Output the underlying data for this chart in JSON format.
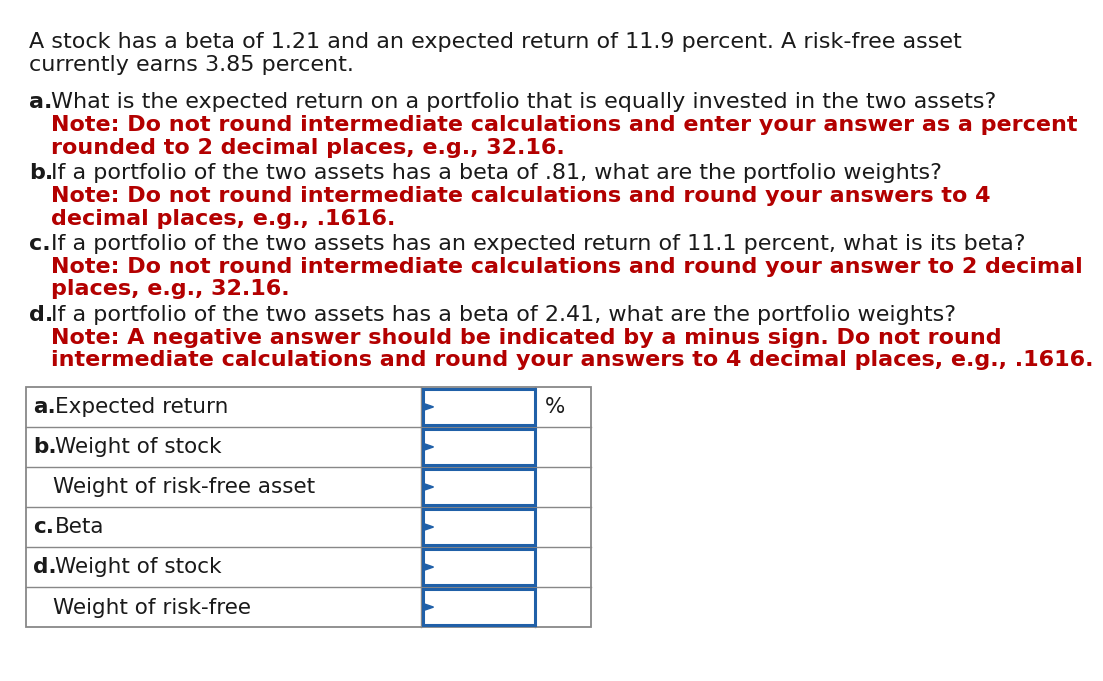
{
  "background_color": "#ffffff",
  "intro_line1": "A stock has a beta of 1.21 and an expected return of 11.9 percent. A risk-free asset",
  "intro_line2": "currently earns 3.85 percent.",
  "questions": [
    {
      "label": "a.",
      "black_text": "What is the expected return on a portfolio that is equally invested in the two assets?",
      "red_lines": [
        "Note: Do not round intermediate calculations and enter your answer as a percent",
        "rounded to 2 decimal places, e.g., 32.16."
      ]
    },
    {
      "label": "b.",
      "black_text": "If a portfolio of the two assets has a beta of .81, what are the portfolio weights?",
      "red_lines": [
        "Note: Do not round intermediate calculations and round your answers to 4",
        "decimal places, e.g., .1616."
      ]
    },
    {
      "label": "c.",
      "black_text": "If a portfolio of the two assets has an expected return of 11.1 percent, what is its beta?",
      "red_lines": [
        "Note: Do not round intermediate calculations and round your answer to 2 decimal",
        "places, e.g., 32.16."
      ]
    },
    {
      "label": "d.",
      "black_text": "If a portfolio of the two assets has a beta of 2.41, what are the portfolio weights?",
      "red_lines": [
        "Note: A negative answer should be indicated by a minus sign. Do not round",
        "intermediate calculations and round your answers to 4 decimal places, e.g., .1616."
      ]
    }
  ],
  "table_rows": [
    {
      "label": "a.",
      "bold_label": true,
      "text": "Expected return",
      "has_percent": true,
      "indent": false
    },
    {
      "label": "b.",
      "bold_label": true,
      "text": "Weight of stock",
      "has_percent": false,
      "indent": false
    },
    {
      "label": "",
      "bold_label": false,
      "text": "Weight of risk-free asset",
      "has_percent": false,
      "indent": true
    },
    {
      "label": "c.",
      "bold_label": true,
      "text": "Beta",
      "has_percent": false,
      "indent": false
    },
    {
      "label": "d.",
      "bold_label": true,
      "text": "Weight of stock",
      "has_percent": false,
      "indent": false
    },
    {
      "label": "",
      "bold_label": false,
      "text": "Weight of risk-free",
      "has_percent": false,
      "indent": true
    }
  ],
  "text_color_black": "#1a1a1a",
  "text_color_red": "#b30000",
  "table_border_color": "#888888",
  "input_border_color": "#2060a8",
  "input_bg_color": "#ffffff",
  "intro_font_size": 16,
  "question_font_size": 16,
  "note_font_size": 16,
  "table_font_size": 15.5
}
